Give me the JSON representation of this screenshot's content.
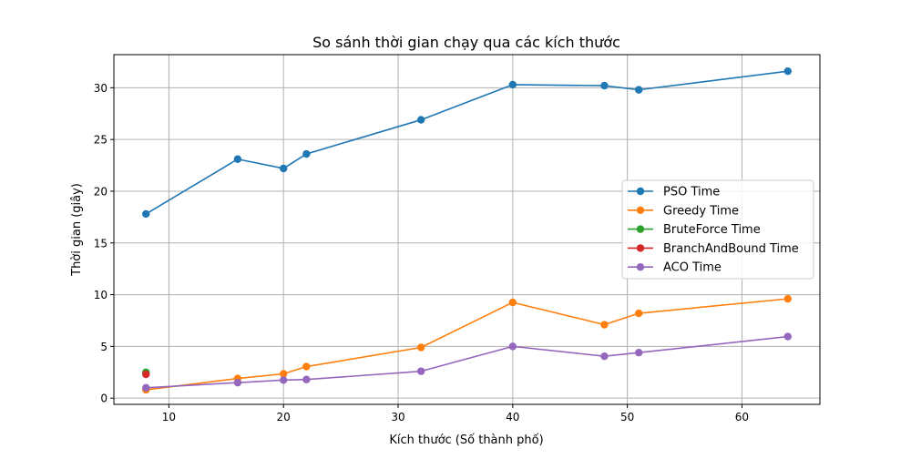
{
  "chart_data": {
    "type": "line",
    "title": "So sánh thời gian chạy qua các kích thước",
    "xlabel": "Kích thước (Số thành phố)",
    "ylabel": "Thời gian (giây)",
    "xlim": [
      5.2,
      66.8
    ],
    "ylim": [
      -0.6,
      33.2
    ],
    "xticks": [
      10,
      20,
      30,
      40,
      50,
      60
    ],
    "yticks": [
      0,
      5,
      10,
      15,
      20,
      25,
      30
    ],
    "grid": true,
    "legend_position": "center-right",
    "series": [
      {
        "name": "PSO Time",
        "color": "#1f77b4",
        "points": [
          [
            8,
            17.8
          ],
          [
            16,
            23.1
          ],
          [
            20,
            22.2
          ],
          [
            22,
            23.6
          ],
          [
            32,
            26.9
          ],
          [
            40,
            30.3
          ],
          [
            48,
            30.2
          ],
          [
            51,
            29.8
          ],
          [
            64,
            31.6
          ]
        ]
      },
      {
        "name": "Greedy Time",
        "color": "#ff7f0e",
        "points": [
          [
            8,
            0.8
          ],
          [
            16,
            1.9
          ],
          [
            20,
            2.35
          ],
          [
            22,
            3.05
          ],
          [
            32,
            4.9
          ],
          [
            40,
            9.25
          ],
          [
            48,
            7.1
          ],
          [
            51,
            8.2
          ],
          [
            64,
            9.6
          ]
        ]
      },
      {
        "name": "BruteForce Time",
        "color": "#2ca02c",
        "points": [
          [
            8,
            2.5
          ]
        ]
      },
      {
        "name": "BranchAndBound Time",
        "color": "#d62728",
        "points": [
          [
            8,
            2.3
          ]
        ]
      },
      {
        "name": "ACO Time",
        "color": "#9467bd",
        "points": [
          [
            8,
            1.0
          ],
          [
            16,
            1.5
          ],
          [
            20,
            1.75
          ],
          [
            22,
            1.8
          ],
          [
            32,
            2.6
          ],
          [
            40,
            5.0
          ],
          [
            48,
            4.05
          ],
          [
            51,
            4.4
          ],
          [
            64,
            5.95
          ]
        ]
      }
    ]
  }
}
